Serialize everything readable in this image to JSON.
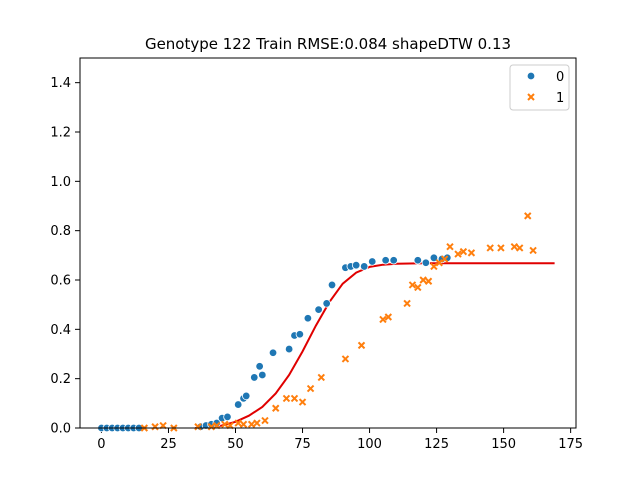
{
  "chart_data": {
    "type": "scatter",
    "title": "Genotype 122 Train RMSE:0.084 shapeDTW 0.13",
    "xlabel": "",
    "ylabel": "",
    "xlim": [
      -8,
      177
    ],
    "ylim": [
      0.0,
      1.5
    ],
    "xticks": [
      0,
      25,
      50,
      75,
      100,
      125,
      150,
      175
    ],
    "yticks": [
      0.0,
      0.2,
      0.4,
      0.6,
      0.8,
      1.0,
      1.2,
      1.4
    ],
    "xtick_labels": [
      "0",
      "25",
      "50",
      "75",
      "100",
      "125",
      "150",
      "175"
    ],
    "ytick_labels": [
      "0.0",
      "0.2",
      "0.4",
      "0.6",
      "0.8",
      "1.0",
      "1.2",
      "1.4"
    ],
    "grid": false,
    "legend_position": "top-right",
    "series": [
      {
        "name": "0",
        "marker": "circle",
        "color": "#1f77b4",
        "points": [
          [
            0,
            0.0
          ],
          [
            2,
            0.0
          ],
          [
            4,
            0.0
          ],
          [
            6,
            0.0
          ],
          [
            8,
            0.0
          ],
          [
            10,
            0.0
          ],
          [
            12,
            0.0
          ],
          [
            14,
            0.0
          ],
          [
            37,
            0.005
          ],
          [
            39,
            0.01
          ],
          [
            41,
            0.015
          ],
          [
            43,
            0.02
          ],
          [
            45,
            0.04
          ],
          [
            47,
            0.045
          ],
          [
            51,
            0.095
          ],
          [
            53,
            0.12
          ],
          [
            54,
            0.13
          ],
          [
            57,
            0.205
          ],
          [
            59,
            0.25
          ],
          [
            60,
            0.215
          ],
          [
            64,
            0.305
          ],
          [
            70,
            0.32
          ],
          [
            72,
            0.375
          ],
          [
            74,
            0.38
          ],
          [
            77,
            0.445
          ],
          [
            81,
            0.48
          ],
          [
            84,
            0.505
          ],
          [
            86,
            0.58
          ],
          [
            91,
            0.65
          ],
          [
            93,
            0.655
          ],
          [
            95,
            0.66
          ],
          [
            98,
            0.655
          ],
          [
            101,
            0.675
          ],
          [
            106,
            0.68
          ],
          [
            109,
            0.68
          ],
          [
            118,
            0.68
          ],
          [
            121,
            0.67
          ],
          [
            124,
            0.69
          ],
          [
            127,
            0.685
          ],
          [
            129,
            0.69
          ]
        ]
      },
      {
        "name": "1",
        "marker": "x",
        "color": "#ff7f0e",
        "points": [
          [
            16,
            0.0
          ],
          [
            20,
            0.005
          ],
          [
            23,
            0.01
          ],
          [
            27,
            0.0
          ],
          [
            36,
            0.005
          ],
          [
            41,
            0.005
          ],
          [
            43,
            0.01
          ],
          [
            46,
            0.015
          ],
          [
            48,
            0.01
          ],
          [
            51,
            0.02
          ],
          [
            53,
            0.015
          ],
          [
            56,
            0.015
          ],
          [
            58,
            0.02
          ],
          [
            61,
            0.03
          ],
          [
            65,
            0.08
          ],
          [
            69,
            0.12
          ],
          [
            72,
            0.12
          ],
          [
            75,
            0.105
          ],
          [
            78,
            0.16
          ],
          [
            82,
            0.205
          ],
          [
            91,
            0.28
          ],
          [
            97,
            0.335
          ],
          [
            105,
            0.44
          ],
          [
            107,
            0.45
          ],
          [
            114,
            0.505
          ],
          [
            116,
            0.58
          ],
          [
            118,
            0.57
          ],
          [
            120,
            0.6
          ],
          [
            122,
            0.595
          ],
          [
            124,
            0.655
          ],
          [
            126,
            0.67
          ],
          [
            128,
            0.685
          ],
          [
            130,
            0.735
          ],
          [
            133,
            0.705
          ],
          [
            135,
            0.715
          ],
          [
            138,
            0.71
          ],
          [
            145,
            0.73
          ],
          [
            149,
            0.73
          ],
          [
            154,
            0.735
          ],
          [
            156,
            0.73
          ],
          [
            159,
            0.86
          ],
          [
            161,
            0.72
          ]
        ]
      },
      {
        "name": "fit",
        "type": "line",
        "color": "#e00000",
        "points": [
          [
            35,
            0.0
          ],
          [
            40,
            0.003
          ],
          [
            45,
            0.01
          ],
          [
            50,
            0.025
          ],
          [
            55,
            0.05
          ],
          [
            60,
            0.085
          ],
          [
            65,
            0.14
          ],
          [
            70,
            0.215
          ],
          [
            75,
            0.31
          ],
          [
            80,
            0.415
          ],
          [
            85,
            0.51
          ],
          [
            90,
            0.585
          ],
          [
            95,
            0.63
          ],
          [
            100,
            0.653
          ],
          [
            105,
            0.662
          ],
          [
            110,
            0.666
          ],
          [
            115,
            0.667
          ],
          [
            120,
            0.668
          ],
          [
            130,
            0.668
          ],
          [
            140,
            0.668
          ],
          [
            150,
            0.668
          ],
          [
            160,
            0.668
          ],
          [
            169,
            0.668
          ]
        ]
      }
    ]
  }
}
